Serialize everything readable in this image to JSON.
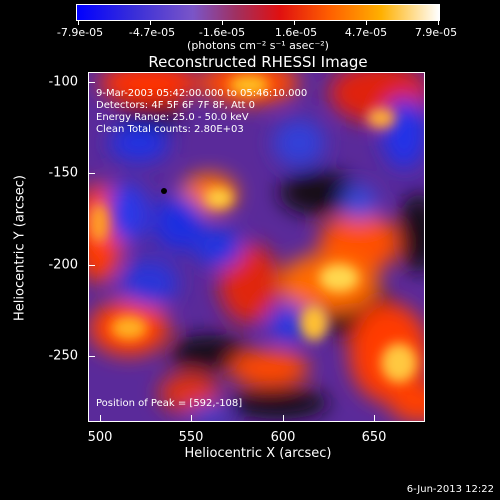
{
  "colorbar": {
    "labels": [
      "-7.9e-05",
      "-4.7e-05",
      "-1.6e-05",
      "1.6e-05",
      "4.7e-05",
      "7.9e-05"
    ],
    "units": "(photons cm⁻² s⁻¹ asec⁻²)"
  },
  "title": "Reconstructed RHESSI Image",
  "annotations": {
    "time_range": "9-Mar-2003 05:42:00.000 to 05:46:10.000",
    "detectors": "Detectors: 4F 5F 6F 7F 8F, Att 0",
    "energy": "Energy Range: 25.0 - 50.0 keV",
    "method": "Clean    Total counts: 2.80E+03",
    "peak": "Position of Peak = [592,-108]"
  },
  "axes": {
    "xlabel": "Heliocentric X (arcsec)",
    "ylabel": "Heliocentric Y (arcsec)",
    "xticks": [
      "500",
      "550",
      "600",
      "650"
    ],
    "yticks": [
      "-100",
      "-150",
      "-200",
      "-250"
    ]
  },
  "footer_date": "6-Jun-2013 12:22"
}
